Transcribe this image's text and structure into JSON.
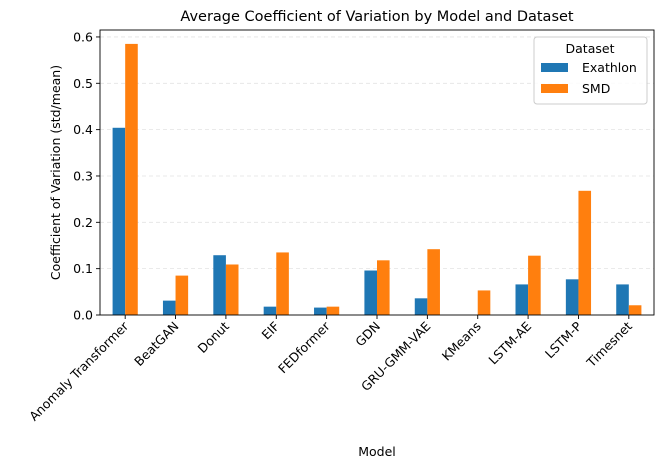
{
  "chart_data": {
    "type": "bar",
    "title": "Average Coefficient of Variation by Model and Dataset",
    "xlabel": "Model",
    "ylabel": "Coefficient of Variation (std/mean)",
    "categories": [
      "Anomaly Transformer",
      "BeatGAN",
      "Donut",
      "EIF",
      "FEDformer",
      "GDN",
      "GRU-GMM-VAE",
      "KMeans",
      "LSTM-AE",
      "LSTM-P",
      "Timesnet"
    ],
    "series": [
      {
        "name": "Exathlon",
        "color": "#1f77b4",
        "values": [
          0.404,
          0.031,
          0.129,
          0.018,
          0.016,
          0.096,
          0.036,
          0.0,
          0.066,
          0.077,
          0.066
        ]
      },
      {
        "name": "SMD",
        "color": "#ff7f0e",
        "values": [
          0.585,
          0.085,
          0.109,
          0.135,
          0.018,
          0.118,
          0.142,
          0.053,
          0.128,
          0.268,
          0.021
        ]
      }
    ],
    "ylim": [
      0,
      0.615
    ],
    "yticks": [
      "0.0",
      "0.1",
      "0.2",
      "0.3",
      "0.4",
      "0.5",
      "0.6"
    ],
    "grid": "y-dashed",
    "legend": {
      "title": "Dataset",
      "placement": "top-right"
    }
  }
}
